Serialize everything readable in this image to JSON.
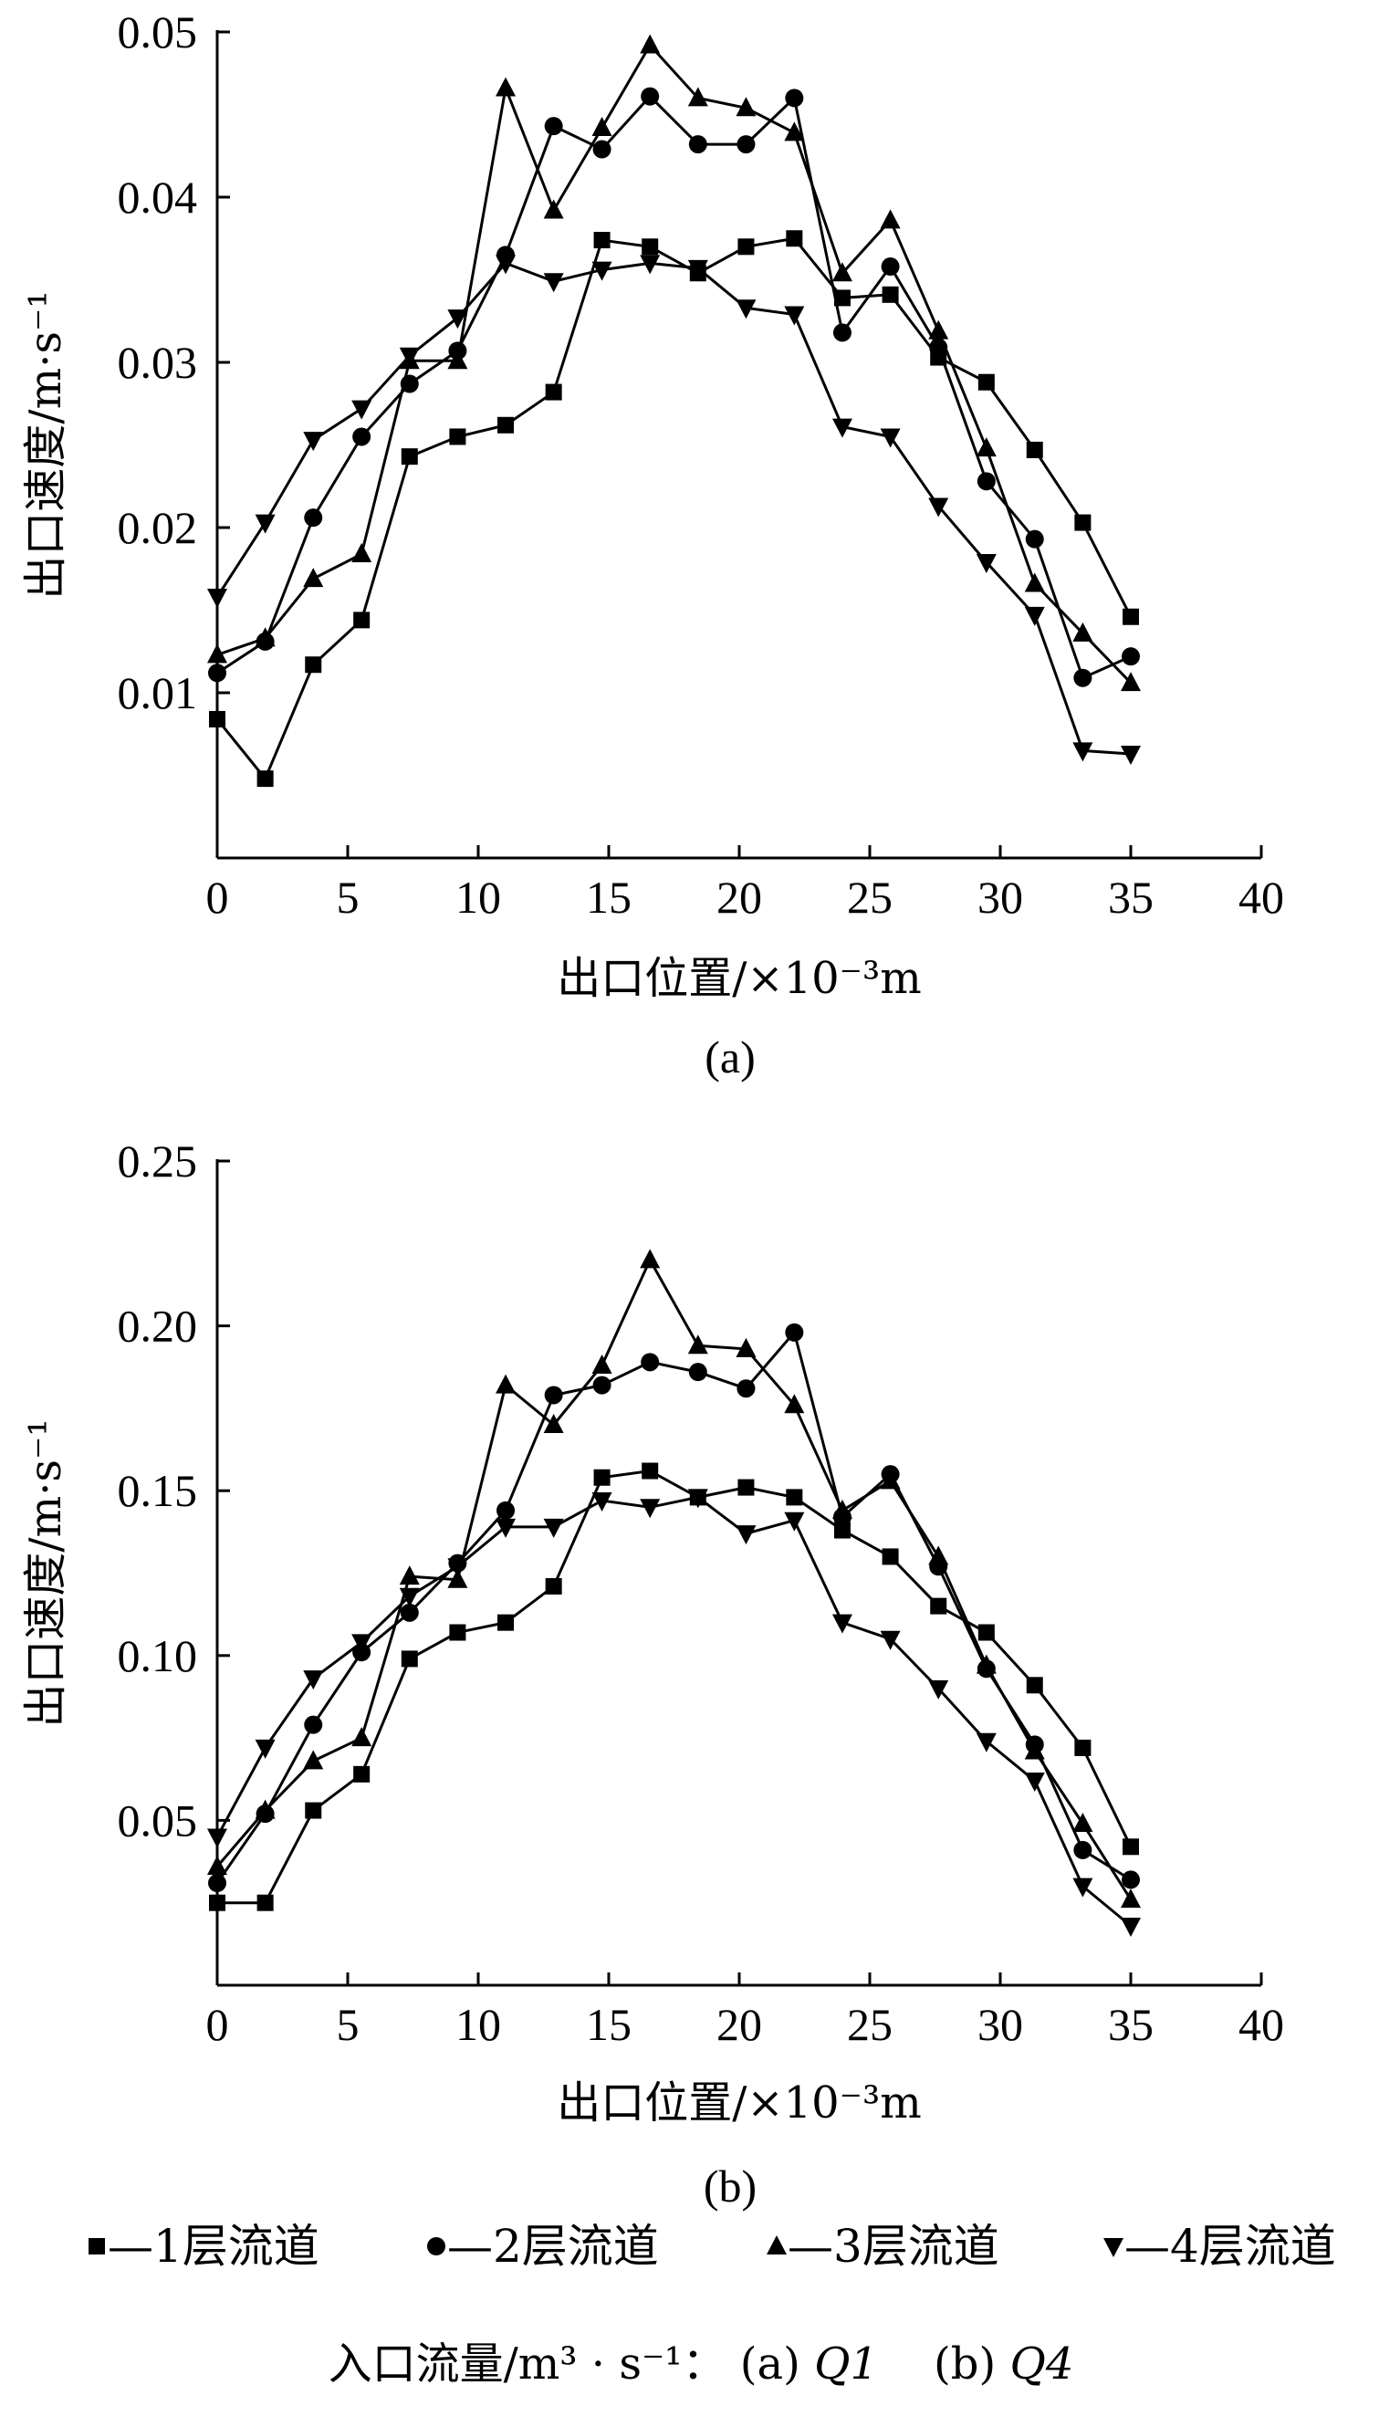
{
  "chart_data": [
    {
      "type": "line",
      "panel_label": "(a)",
      "xlabel": "出口位置/×10⁻³m",
      "ylabel": "出口速度/m·s⁻¹",
      "xlim": [
        0,
        40
      ],
      "ylim": [
        0,
        0.05
      ],
      "xticks": [
        "0",
        "5",
        "10",
        "15",
        "20",
        "25",
        "30",
        "35",
        "40"
      ],
      "yticks": [
        "0.01",
        "0.02",
        "0.03",
        "0.04",
        "0.05"
      ],
      "x": [
        0,
        1.84,
        3.68,
        5.53,
        7.37,
        9.21,
        11.05,
        12.89,
        14.74,
        16.58,
        18.42,
        20.26,
        22.11,
        23.95,
        25.79,
        27.63,
        29.47,
        31.32,
        33.16,
        35.0
      ],
      "series": [
        {
          "name": "1层流道",
          "marker": "square",
          "values": [
            0.0084,
            0.0048,
            0.0117,
            0.0144,
            0.0243,
            0.0255,
            0.0262,
            0.0282,
            0.0374,
            0.037,
            0.0354,
            0.037,
            0.0375,
            0.0339,
            0.0341,
            0.0303,
            0.0288,
            0.0247,
            0.0203,
            0.0146
          ]
        },
        {
          "name": "2层流道",
          "marker": "circle",
          "values": [
            0.0112,
            0.0131,
            0.0206,
            0.0255,
            0.0287,
            0.0307,
            0.0365,
            0.0443,
            0.0429,
            0.0461,
            0.0432,
            0.0432,
            0.046,
            0.0318,
            0.0358,
            0.0309,
            0.0228,
            0.0193,
            0.0109,
            0.0122
          ]
        },
        {
          "name": "3层流道",
          "marker": "triangle-up",
          "values": [
            0.0123,
            0.0133,
            0.0169,
            0.0184,
            0.0301,
            0.0301,
            0.0466,
            0.0392,
            0.0442,
            0.0492,
            0.046,
            0.0454,
            0.0439,
            0.0354,
            0.0386,
            0.0319,
            0.0248,
            0.0166,
            0.0136,
            0.0106
          ]
        },
        {
          "name": "4层流道",
          "marker": "triangle-down",
          "values": [
            0.0158,
            0.0203,
            0.0253,
            0.0272,
            0.0304,
            0.0327,
            0.036,
            0.0349,
            0.0356,
            0.036,
            0.0357,
            0.0333,
            0.0329,
            0.0261,
            0.0255,
            0.0213,
            0.0179,
            0.0147,
            0.0065,
            0.0063
          ]
        }
      ]
    },
    {
      "type": "line",
      "panel_label": "(b)",
      "xlabel": "出口位置/×10⁻³m",
      "ylabel": "出口速度/m·s⁻¹",
      "xlim": [
        0,
        40
      ],
      "ylim": [
        0,
        0.25
      ],
      "xticks": [
        "0",
        "5",
        "10",
        "15",
        "20",
        "25",
        "30",
        "35",
        "40"
      ],
      "yticks": [
        "0.05",
        "0.10",
        "0.15",
        "0.20",
        "0.25"
      ],
      "x": [
        0,
        1.84,
        3.68,
        5.53,
        7.37,
        9.21,
        11.05,
        12.89,
        14.74,
        16.58,
        18.42,
        20.26,
        22.11,
        23.95,
        25.79,
        27.63,
        29.47,
        31.32,
        33.16,
        35.0
      ],
      "series": [
        {
          "name": "1层流道",
          "marker": "square",
          "values": [
            0.025,
            0.025,
            0.053,
            0.064,
            0.099,
            0.107,
            0.11,
            0.121,
            0.154,
            0.156,
            0.148,
            0.151,
            0.148,
            0.138,
            0.13,
            0.115,
            0.107,
            0.091,
            0.072,
            0.042
          ]
        },
        {
          "name": "2层流道",
          "marker": "circle",
          "values": [
            0.031,
            0.052,
            0.079,
            0.101,
            0.113,
            0.128,
            0.144,
            0.179,
            0.182,
            0.189,
            0.186,
            0.181,
            0.198,
            0.142,
            0.155,
            0.127,
            0.096,
            0.073,
            0.041,
            0.032
          ]
        },
        {
          "name": "3层流道",
          "marker": "triangle-up",
          "values": [
            0.036,
            0.053,
            0.068,
            0.075,
            0.124,
            0.123,
            0.182,
            0.17,
            0.188,
            0.22,
            0.194,
            0.193,
            0.176,
            0.144,
            0.153,
            0.13,
            0.097,
            0.071,
            0.049,
            0.026
          ]
        },
        {
          "name": "4层流道",
          "marker": "triangle-down",
          "values": [
            0.045,
            0.072,
            0.093,
            0.104,
            0.118,
            0.127,
            0.139,
            0.139,
            0.147,
            0.145,
            0.148,
            0.137,
            0.141,
            0.11,
            0.105,
            0.09,
            0.074,
            0.062,
            0.03,
            0.018
          ]
        }
      ]
    }
  ],
  "legend": {
    "items": [
      {
        "marker": "square",
        "label": "—1层流道"
      },
      {
        "marker": "circle",
        "label": "—2层流道"
      },
      {
        "marker": "triangle-up",
        "label": "—3层流道"
      },
      {
        "marker": "triangle-down",
        "label": "—4层流道"
      }
    ]
  },
  "caption": {
    "prefix": "入口流量/m³ · s⁻¹： (a) ",
    "q1": "Q1",
    "middle": "    (b) ",
    "q4": "Q4"
  }
}
